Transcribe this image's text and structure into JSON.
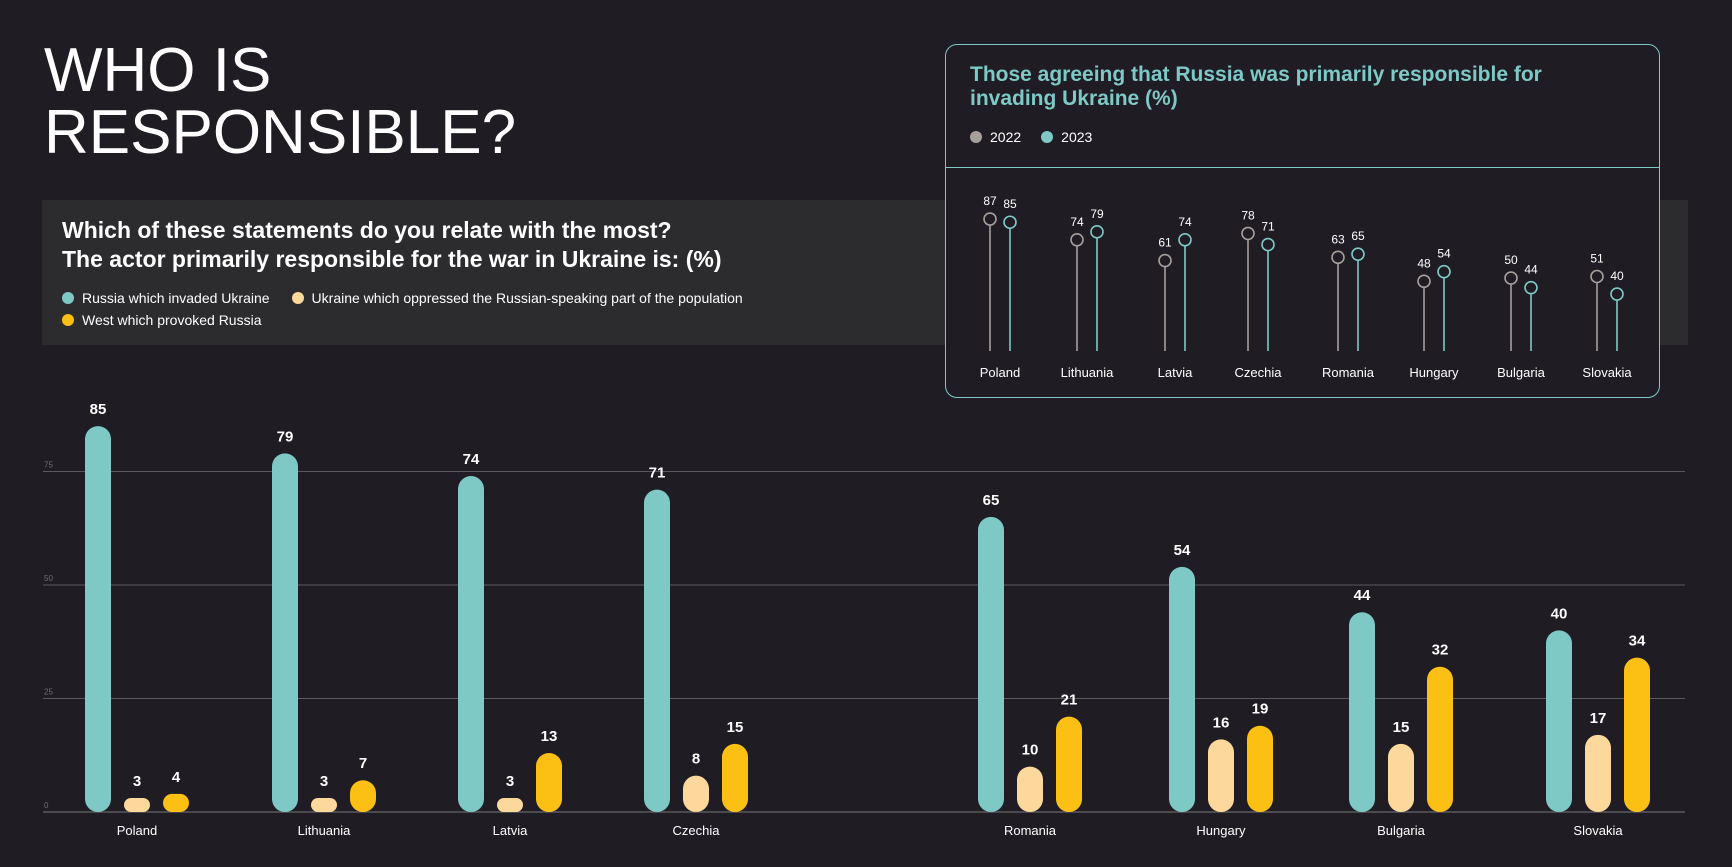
{
  "header": {
    "title_line1": "WHO IS",
    "title_line2": "RESPONSIBLE?"
  },
  "colors": {
    "background": "#1f1d23",
    "band": "#2c2c2e",
    "russia": "#7ec8c6",
    "ukraine": "#fdd89c",
    "west": "#fcc014",
    "y2022": "#a89f9c",
    "y2023": "#7ec8c6",
    "grid": "#5a5a5e"
  },
  "chart_data": [
    {
      "type": "bar",
      "title": "Which of these statements do you relate with the most?",
      "subtitle": "The actor primarily responsible for the war in Ukraine is: (%)",
      "categories": [
        "Poland",
        "Lithuania",
        "Latvia",
        "Czechia",
        "Romania",
        "Hungary",
        "Bulgaria",
        "Slovakia"
      ],
      "series": [
        {
          "name": "Russia which invaded Ukraine",
          "values": [
            85,
            79,
            74,
            71,
            65,
            54,
            44,
            40
          ]
        },
        {
          "name": "Ukraine which oppressed the Russian-speaking part of the population",
          "values": [
            3,
            3,
            3,
            8,
            10,
            16,
            15,
            17
          ]
        },
        {
          "name": "West which provoked Russia",
          "values": [
            4,
            7,
            13,
            15,
            21,
            19,
            32,
            34
          ]
        }
      ],
      "yticks": [
        "0",
        "25",
        "50",
        "75"
      ],
      "ylim": [
        0,
        90
      ],
      "grid": true,
      "legend": "top-left"
    },
    {
      "type": "lollipop",
      "title": "Those agreeing that Russia was primarily responsible for invading Ukraine  (%)",
      "categories": [
        "Poland",
        "Lithuania",
        "Latvia",
        "Czechia",
        "Romania",
        "Hungary",
        "Bulgaria",
        "Slovakia"
      ],
      "series": [
        {
          "name": "2022",
          "values": [
            87,
            74,
            61,
            78,
            63,
            48,
            50,
            51
          ]
        },
        {
          "name": "2023",
          "values": [
            85,
            79,
            74,
            71,
            65,
            54,
            44,
            40
          ]
        }
      ],
      "legend": "top-left"
    }
  ]
}
